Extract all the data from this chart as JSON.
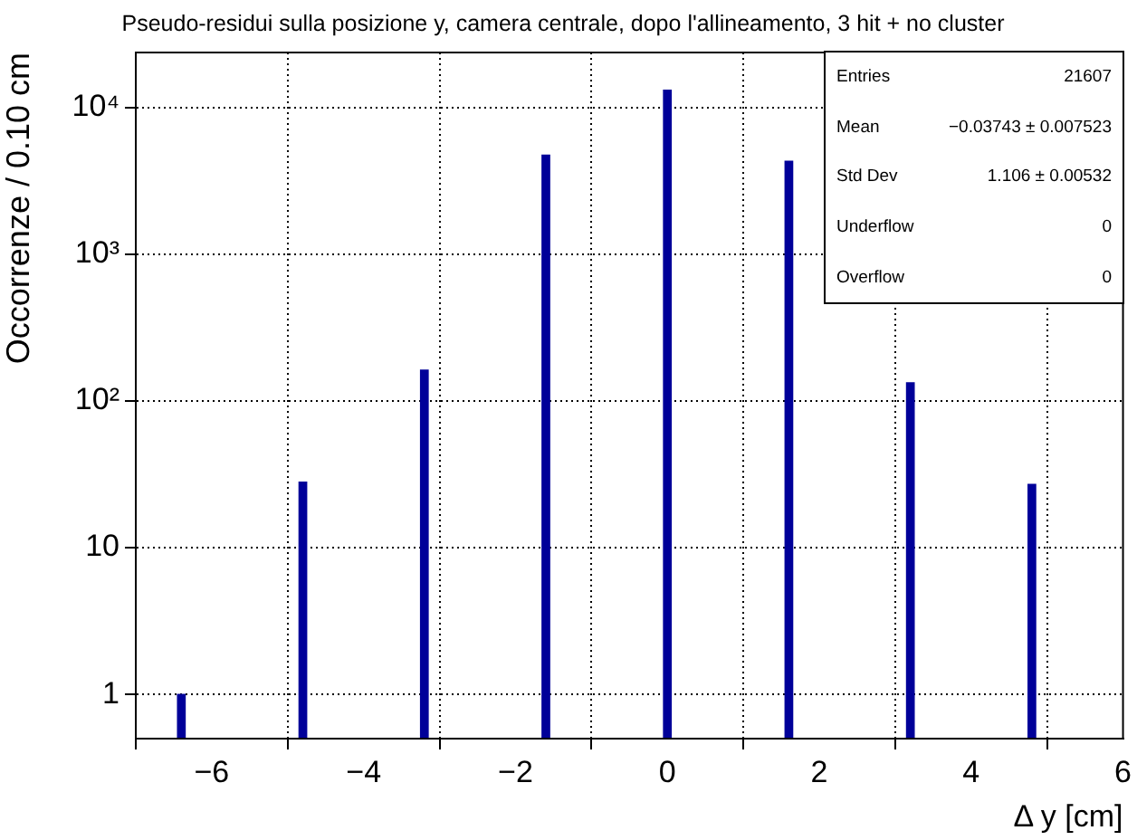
{
  "chart_data": {
    "type": "histogram",
    "title": "Pseudo-residui sulla posizione y, camera centrale, dopo l'allineamento, 3 hit + no cluster",
    "xlabel": "Δ y [cm]",
    "ylabel": "Occorrenze / 0.10 cm",
    "bins": [
      -6.45,
      -6.35,
      -6.25,
      -6.15,
      -6.05,
      -5.95,
      -5.85,
      -5.75,
      -5.65,
      -5.55,
      -5.45,
      -5.35,
      -5.25,
      -5.15,
      -5.05,
      -4.95,
      -4.85,
      -4.75,
      -4.65,
      -4.55,
      -4.45,
      -4.35,
      -4.25,
      -4.15,
      -4.05,
      -3.95,
      -3.85,
      -3.75,
      -3.65,
      -3.55,
      -3.45,
      -3.35,
      -3.25,
      -3.15,
      -3.05,
      -2.95,
      -2.85,
      -2.75,
      -2.65,
      -2.55,
      -2.45,
      -2.35,
      -2.25,
      -2.15,
      -2.05,
      -1.95,
      -1.85,
      -1.75,
      -1.65,
      -1.55,
      -1.45,
      -1.35,
      -1.25,
      -1.15,
      -1.05,
      -0.95,
      -0.85,
      -0.75,
      -0.65,
      -0.55,
      -0.45,
      -0.35,
      -0.25,
      -0.15,
      -0.05,
      0.05,
      0.15,
      0.25,
      0.35,
      0.45,
      0.55,
      0.65,
      0.75,
      0.85,
      0.95,
      1.05,
      1.15,
      1.25,
      1.35,
      1.45,
      1.55,
      1.65,
      1.75,
      1.85,
      1.95,
      2.05,
      2.15,
      2.25,
      2.35,
      2.45,
      2.55,
      2.65,
      2.75,
      2.85,
      2.95,
      3.05,
      3.15,
      3.25,
      3.35,
      3.45,
      3.55,
      3.65,
      3.75,
      3.85,
      3.95,
      4.05,
      4.15,
      4.25,
      4.35,
      4.45,
      4.55,
      4.65,
      4.75,
      4.85
    ],
    "values": [
      1,
      null,
      null,
      null,
      null,
      null,
      null,
      null,
      null,
      null,
      null,
      null,
      null,
      null,
      null,
      null,
      28,
      null,
      null,
      null,
      null,
      null,
      null,
      null,
      null,
      null,
      null,
      null,
      null,
      null,
      null,
      null,
      162,
      null,
      null,
      null,
      null,
      null,
      null,
      null,
      null,
      null,
      null,
      null,
      null,
      null,
      null,
      null,
      4730,
      null,
      null,
      null,
      null,
      null,
      null,
      null,
      null,
      null,
      null,
      null,
      null,
      null,
      null,
      null,
      13100,
      null,
      null,
      null,
      null,
      null,
      null,
      null,
      null,
      null,
      null,
      null,
      null,
      null,
      null,
      null,
      4300,
      null,
      null,
      null,
      null,
      null,
      null,
      null,
      null,
      null,
      null,
      null,
      null,
      null,
      null,
      null,
      133,
      null,
      null,
      null,
      null,
      null,
      null,
      null,
      null,
      null,
      null,
      null,
      null,
      null,
      null,
      null,
      27
    ],
    "color": "#000099",
    "log": "y",
    "grid": true,
    "xlim": [
      -7,
      6
    ],
    "xticks": [
      {
        "value": -6,
        "label": "−6"
      },
      {
        "value": -4,
        "label": "−4"
      },
      {
        "value": -2,
        "label": "−2"
      },
      0,
      2,
      4,
      6
    ],
    "ylim": [
      0.5,
      23700
    ],
    "yticks": [
      1,
      10,
      {
        "value": 100,
        "label": "10²"
      },
      {
        "value": 1000,
        "label": "10³"
      },
      {
        "value": 10000,
        "label": "10⁴"
      }
    ],
    "annotations": [
      "Entries",
      "21607",
      "Mean",
      "−0.03743 ± 0.007523",
      "Std Dev",
      "1.106 ± 0.00532",
      "Underflow",
      "0",
      "Overflow",
      "0"
    ]
  }
}
